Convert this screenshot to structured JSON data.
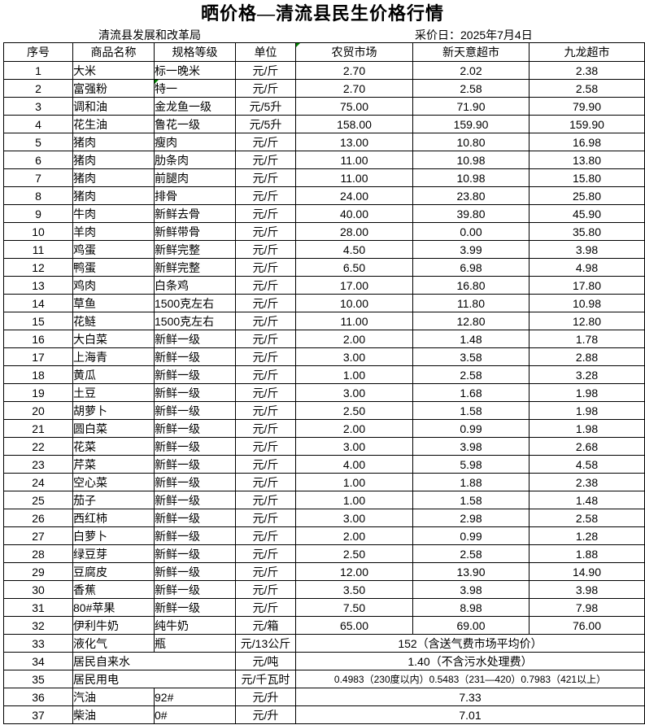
{
  "header": {
    "title": "晒价格—清流县民生价格行情",
    "agency": "清流县发展和改革局",
    "price_date": "采价日：2025年7月4日"
  },
  "icons": {
    "cell_flag": "green-corner-triangle"
  },
  "colors": {
    "flag_green": "#008000",
    "border": "#000000",
    "background": "#ffffff"
  },
  "table": {
    "columns": [
      "序号",
      "商品名称",
      "规格等级",
      "单位",
      "农贸市场",
      "新天意超市",
      "九龙超市"
    ],
    "header_flag_column": "农贸市场",
    "rows": [
      {
        "no": "1",
        "name": "大米",
        "spec": "标一晚米",
        "unit": "元/斤",
        "prices": [
          "2.70",
          "2.02",
          "2.38"
        ]
      },
      {
        "no": "2",
        "name": "富强粉",
        "spec": "特一",
        "spec_flag": true,
        "unit": "元/斤",
        "prices": [
          "2.70",
          "2.58",
          "2.58"
        ]
      },
      {
        "no": "3",
        "name": "调和油",
        "spec": "金龙鱼一级",
        "unit": "元/5升",
        "prices": [
          "75.00",
          "71.90",
          "79.90"
        ]
      },
      {
        "no": "4",
        "name": "花生油",
        "spec": "鲁花一级",
        "unit": "元/5升",
        "prices": [
          "158.00",
          "159.90",
          "159.90"
        ]
      },
      {
        "no": "5",
        "name": "猪肉",
        "spec": "瘦肉",
        "unit": "元/斤",
        "prices": [
          "13.00",
          "10.80",
          "16.98"
        ]
      },
      {
        "no": "6",
        "name": "猪肉",
        "spec": "肋条肉",
        "unit": "元/斤",
        "prices": [
          "11.00",
          "10.98",
          "13.80"
        ]
      },
      {
        "no": "7",
        "name": "猪肉",
        "spec": "前腿肉",
        "unit": "元/斤",
        "prices": [
          "11.00",
          "10.98",
          "15.80"
        ]
      },
      {
        "no": "8",
        "name": "猪肉",
        "spec": "排骨",
        "unit": "元/斤",
        "prices": [
          "24.00",
          "23.80",
          "25.80"
        ]
      },
      {
        "no": "9",
        "name": "牛肉",
        "spec": "新鲜去骨",
        "unit": "元/斤",
        "prices": [
          "40.00",
          "39.80",
          "45.90"
        ]
      },
      {
        "no": "10",
        "name": "羊肉",
        "spec": "新鲜带骨",
        "unit": "元/斤",
        "prices": [
          "28.00",
          "0.00",
          "35.80"
        ]
      },
      {
        "no": "11",
        "name": "鸡蛋",
        "spec": "新鲜完整",
        "unit": "元/斤",
        "prices": [
          "4.50",
          "3.99",
          "3.98"
        ]
      },
      {
        "no": "12",
        "name": "鸭蛋",
        "spec": "新鲜完整",
        "unit": "元/斤",
        "prices": [
          "6.50",
          "6.98",
          "4.98"
        ]
      },
      {
        "no": "13",
        "name": "鸡肉",
        "spec": "白条鸡",
        "unit": "元/斤",
        "prices": [
          "17.00",
          "16.80",
          "17.80"
        ]
      },
      {
        "no": "14",
        "name": "草鱼",
        "spec": "1500克左右",
        "unit": "元/斤",
        "prices": [
          "10.00",
          "11.80",
          "10.98"
        ]
      },
      {
        "no": "15",
        "name": "花鲢",
        "spec": "1500克左右",
        "unit": "元/斤",
        "prices": [
          "11.00",
          "12.80",
          "12.80"
        ]
      },
      {
        "no": "16",
        "name": "大白菜",
        "spec": "新鲜一级",
        "unit": "元/斤",
        "prices": [
          "2.00",
          "1.48",
          "1.78"
        ]
      },
      {
        "no": "17",
        "name": "上海青",
        "spec": "新鲜一级",
        "unit": "元/斤",
        "prices": [
          "3.00",
          "3.58",
          "2.88"
        ]
      },
      {
        "no": "18",
        "name": "黄瓜",
        "spec": "新鲜一级",
        "unit": "元/斤",
        "prices": [
          "1.00",
          "2.58",
          "3.28"
        ]
      },
      {
        "no": "19",
        "name": "土豆",
        "spec": "新鲜一级",
        "unit": "元/斤",
        "prices": [
          "3.00",
          "1.68",
          "1.98"
        ]
      },
      {
        "no": "20",
        "name": "胡萝卜",
        "spec": "新鲜一级",
        "unit": "元/斤",
        "prices": [
          "2.50",
          "1.58",
          "1.98"
        ]
      },
      {
        "no": "21",
        "name": "圆白菜",
        "spec": "新鲜一级",
        "unit": "元/斤",
        "prices": [
          "2.00",
          "0.99",
          "1.98"
        ]
      },
      {
        "no": "22",
        "name": "花菜",
        "spec": "新鲜一级",
        "unit": "元/斤",
        "prices": [
          "3.00",
          "3.98",
          "2.68"
        ]
      },
      {
        "no": "23",
        "name": "芹菜",
        "spec": "新鲜一级",
        "unit": "元/斤",
        "prices": [
          "4.00",
          "5.98",
          "4.58"
        ]
      },
      {
        "no": "24",
        "name": "空心菜",
        "spec": "新鲜一级",
        "unit": "元/斤",
        "prices": [
          "1.00",
          "1.88",
          "2.38"
        ]
      },
      {
        "no": "25",
        "name": "茄子",
        "spec": "新鲜一级",
        "unit": "元/斤",
        "prices": [
          "1.00",
          "1.58",
          "1.48"
        ]
      },
      {
        "no": "26",
        "name": "西红柿",
        "spec": "新鲜一级",
        "unit": "元/斤",
        "prices": [
          "3.00",
          "2.98",
          "2.58"
        ]
      },
      {
        "no": "27",
        "name": "白萝卜",
        "spec": "新鲜一级",
        "unit": "元/斤",
        "prices": [
          "2.00",
          "0.99",
          "1.28"
        ]
      },
      {
        "no": "28",
        "name": "绿豆芽",
        "spec": "新鲜一级",
        "unit": "元/斤",
        "prices": [
          "2.50",
          "2.58",
          "1.88"
        ]
      },
      {
        "no": "29",
        "name": "豆腐皮",
        "spec": "新鲜一级",
        "unit": "元/斤",
        "prices": [
          "12.00",
          "13.90",
          "14.90"
        ]
      },
      {
        "no": "30",
        "name": "香蕉",
        "spec": "新鲜一级",
        "unit": "元/斤",
        "prices": [
          "3.50",
          "3.98",
          "3.98"
        ]
      },
      {
        "no": "31",
        "name": "80#苹果",
        "spec": "新鲜一级",
        "unit": "元/斤",
        "prices": [
          "7.50",
          "8.98",
          "7.98"
        ]
      },
      {
        "no": "32",
        "name": "伊利牛奶",
        "spec": "纯牛奶",
        "unit": "元/箱",
        "prices": [
          "65.00",
          "69.00",
          "76.00"
        ]
      },
      {
        "no": "33",
        "name": "液化气",
        "spec": "瓶",
        "unit": "元/13公斤",
        "merged": "152（含送气费市场平均价）"
      },
      {
        "no": "34",
        "name": "居民自来水",
        "name_span": 2,
        "unit": "元/吨",
        "merged": "1.40（不含污水处理费）"
      },
      {
        "no": "35",
        "name": "居民用电",
        "name_span": 2,
        "unit": "元/千瓦时",
        "merged": "0.4983（230度以内）0.5483（231—420）0.7983（421以上）",
        "small": true
      },
      {
        "no": "36",
        "name": "汽油",
        "spec": "92#",
        "unit": "元/升",
        "merged": "7.33"
      },
      {
        "no": "37",
        "name": "柴油",
        "spec": "0#",
        "unit": "元/升",
        "merged": "7.01"
      }
    ]
  }
}
